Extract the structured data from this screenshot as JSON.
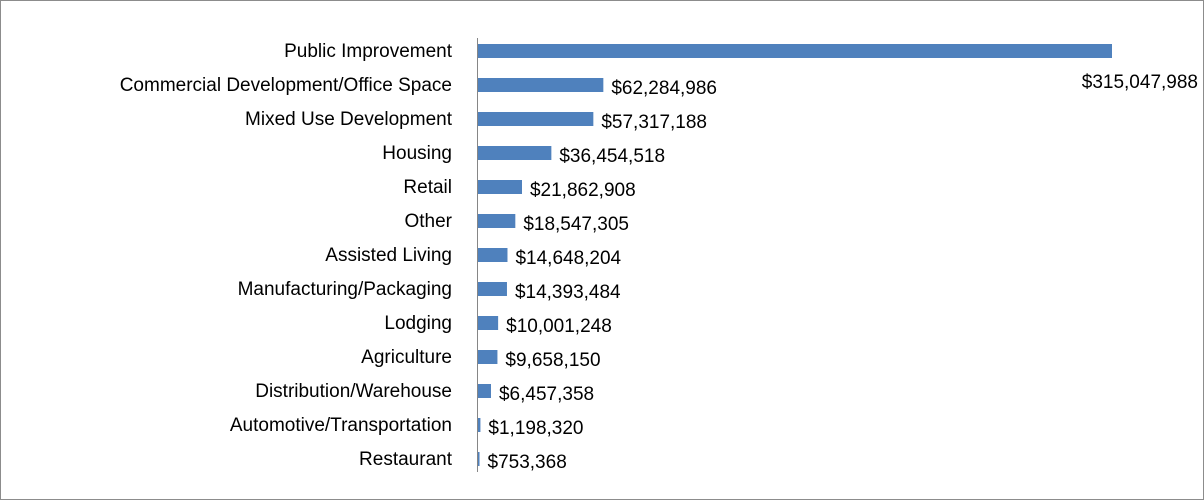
{
  "chart_data": {
    "type": "bar",
    "orientation": "horizontal",
    "color": "#4f81bd",
    "categories": [
      "Public Improvement",
      "Commercial Development/Office Space",
      "Mixed Use Development",
      "Housing",
      "Retail",
      "Other",
      "Assisted Living",
      "Manufacturing/Packaging",
      "Lodging",
      "Agriculture",
      "Distribution/Warehouse",
      "Automotive/Transportation",
      "Restaurant"
    ],
    "values": [
      315047988,
      62284986,
      57317188,
      36454518,
      21862908,
      18547305,
      14648204,
      14393484,
      10001248,
      9658150,
      6457358,
      1198320,
      753368
    ],
    "value_labels": [
      "$315,047,988",
      "$62,284,986",
      "$57,317,188",
      "$36,454,518",
      "$21,862,908",
      "$18,547,305",
      "$14,648,204",
      "$14,393,484",
      "$10,001,248",
      "$9,658,150",
      "$6,457,358",
      "$1,198,320",
      "$753,368"
    ]
  }
}
